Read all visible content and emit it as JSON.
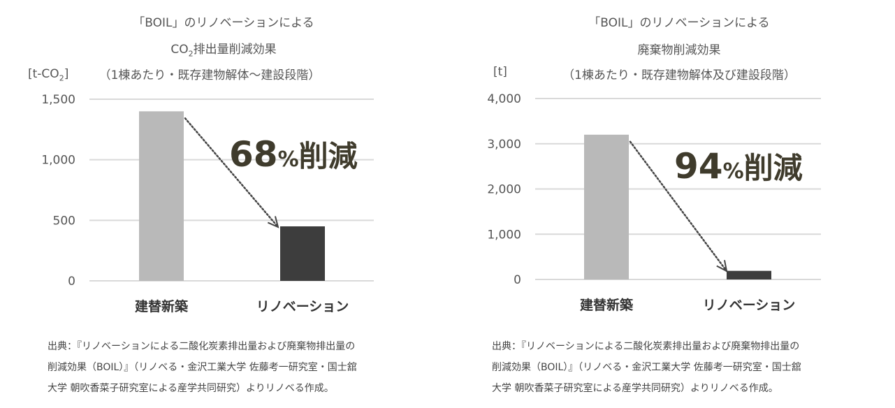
{
  "charts": [
    {
      "title": [
        "「BOIL」のリノベーションによる",
        "CO",
        "2",
        "排出量削減効果",
        "（1棟あたり・既存建物解体～建設段階）"
      ],
      "unit": {
        "pre": "[t-CO",
        "sub": "2",
        "post": "]"
      },
      "reduction": {
        "num": "68",
        "pct": "%",
        "word": "削減"
      },
      "source": [
        "出典：『リノベーションによる二酸化炭素排出量および廃棄物排出量の",
        "削減効果（BOIL）』（リノベる・金沢工業大学 佐藤考一研究室・国士舘",
        "大学 朝吹香菜子研究室による産学共同研究）よりリノベる作成。"
      ]
    },
    {
      "title": [
        "「BOIL」のリノベーションによる",
        "廃棄物削減効果",
        "（1棟あたり・既存建物解体及び建設段階）"
      ],
      "unit": {
        "pre": "[t]"
      },
      "reduction": {
        "num": "94",
        "pct": "%",
        "word": "削減"
      },
      "source": [
        "出典：『リノベーションによる二酸化炭素排出量および廃棄物排出量の",
        "削減効果（BOIL）』（リノベる・金沢工業大学 佐藤考一研究室・国士舘",
        "大学 朝吹香菜子研究室による産学共同研究）よりリノベる作成。"
      ]
    }
  ],
  "chart_data": [
    {
      "type": "bar",
      "categories": [
        "建替新築",
        "リノベーション"
      ],
      "values": [
        1400,
        450
      ],
      "ylim": [
        0,
        1500
      ],
      "yticks": [
        0,
        500,
        1000,
        1500
      ],
      "ytick_labels": [
        "0",
        "500",
        "1,000",
        "1,500"
      ],
      "colors": [
        "#b9b9b9",
        "#3d3d3d"
      ],
      "grid": true
    },
    {
      "type": "bar",
      "categories": [
        "建替新築",
        "リノベーション"
      ],
      "values": [
        3200,
        190
      ],
      "ylim": [
        0,
        4000
      ],
      "yticks": [
        0,
        1000,
        2000,
        3000,
        4000
      ],
      "ytick_labels": [
        "0",
        "1,000",
        "2,000",
        "3,000",
        "4,000"
      ],
      "colors": [
        "#b9b9b9",
        "#3d3d3d"
      ],
      "grid": true
    }
  ]
}
